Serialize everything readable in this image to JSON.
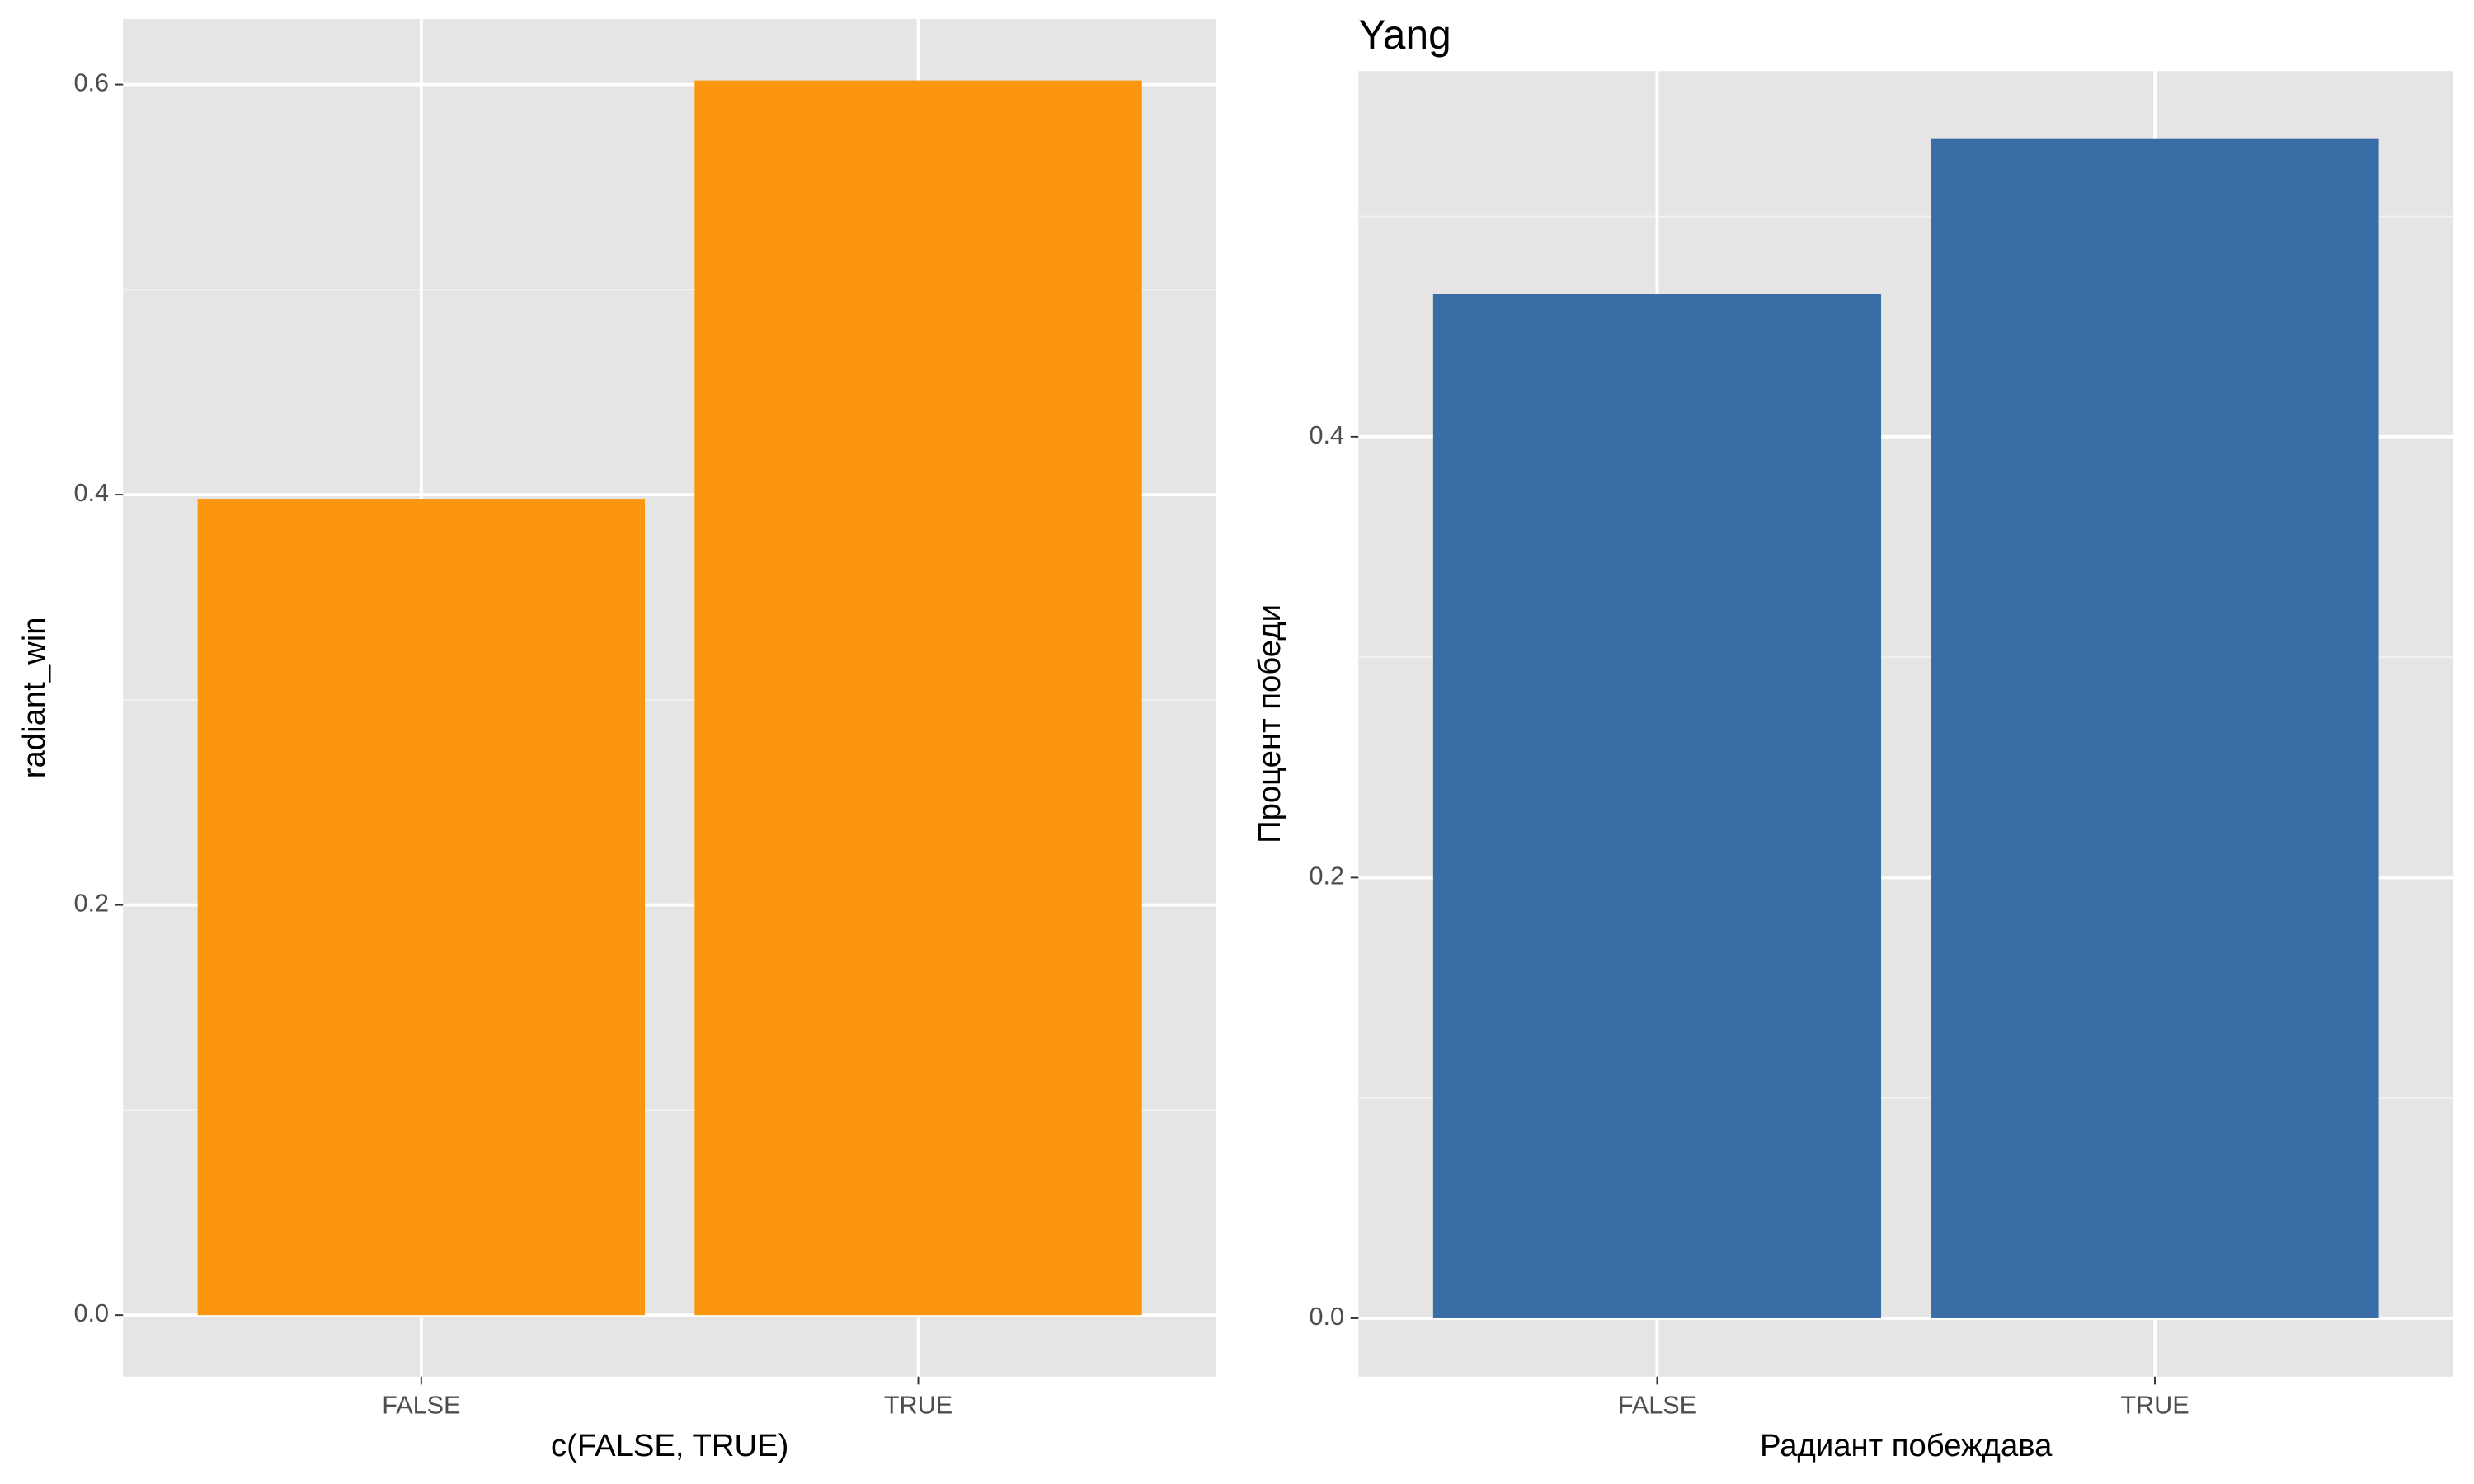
{
  "chart_data": [
    {
      "type": "bar",
      "xlabel": "c(FALSE, TRUE)",
      "ylabel": "radiant_win",
      "categories": [
        "FALSE",
        "TRUE"
      ],
      "values": [
        0.398,
        0.602
      ],
      "color": "#fb960e",
      "ylim": [
        -0.03,
        0.632
      ],
      "yticks": [
        {
          "value": 0,
          "label": "0.0"
        },
        {
          "value": 0.2,
          "label": "0.2"
        },
        {
          "value": 0.4,
          "label": "0.4"
        },
        {
          "value": 0.6,
          "label": "0.6"
        }
      ],
      "yminor": [
        0.1,
        0.3,
        0.5
      ],
      "grid": true
    },
    {
      "type": "bar",
      "title": "Yang",
      "xlabel": "Радиант побеждава",
      "ylabel": "Процент победи",
      "categories": [
        "FALSE",
        "TRUE"
      ],
      "values": [
        0.465,
        0.5355
      ],
      "color": "#396da5",
      "ylim": [
        -0.0265,
        0.566
      ],
      "yticks": [
        {
          "value": 0,
          "label": "0.0"
        },
        {
          "value": 0.2,
          "label": "0.2"
        },
        {
          "value": 0.4,
          "label": "0.4"
        }
      ],
      "yminor": [
        0.1,
        0.3,
        0.5
      ],
      "grid": true
    }
  ]
}
